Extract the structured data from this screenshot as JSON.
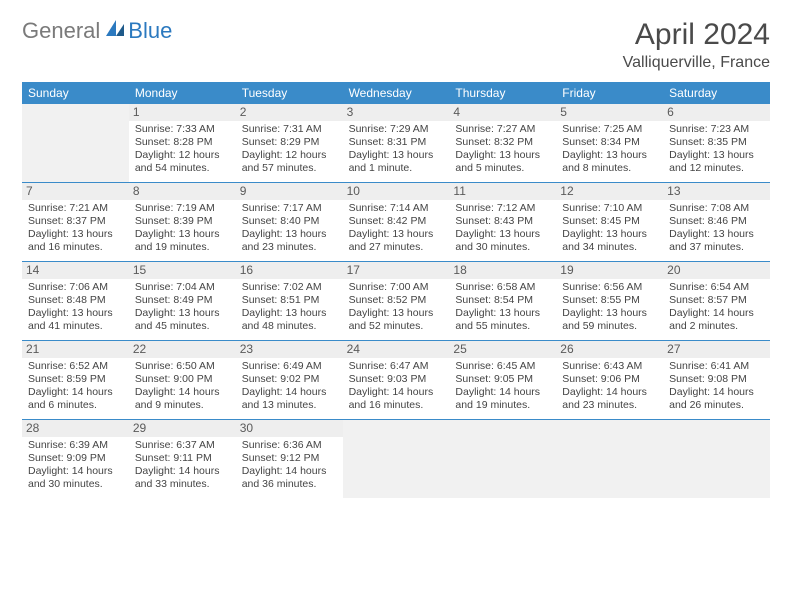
{
  "logo": {
    "general": "General",
    "blue": "Blue"
  },
  "title": {
    "month": "April 2024",
    "location": "Valliquerville, France"
  },
  "colors": {
    "header_bg": "#3a8bc9",
    "header_text": "#ffffff",
    "rule": "#3a8bc9",
    "daynum_bg": "#eeeeee",
    "empty_bg": "#f1f1f1",
    "text": "#444444"
  },
  "day_names": [
    "Sunday",
    "Monday",
    "Tuesday",
    "Wednesday",
    "Thursday",
    "Friday",
    "Saturday"
  ],
  "weeks": [
    [
      {
        "empty": true
      },
      {
        "n": "1",
        "sunrise": "7:33 AM",
        "sunset": "8:28 PM",
        "daylight": "12 hours and 54 minutes."
      },
      {
        "n": "2",
        "sunrise": "7:31 AM",
        "sunset": "8:29 PM",
        "daylight": "12 hours and 57 minutes."
      },
      {
        "n": "3",
        "sunrise": "7:29 AM",
        "sunset": "8:31 PM",
        "daylight": "13 hours and 1 minute."
      },
      {
        "n": "4",
        "sunrise": "7:27 AM",
        "sunset": "8:32 PM",
        "daylight": "13 hours and 5 minutes."
      },
      {
        "n": "5",
        "sunrise": "7:25 AM",
        "sunset": "8:34 PM",
        "daylight": "13 hours and 8 minutes."
      },
      {
        "n": "6",
        "sunrise": "7:23 AM",
        "sunset": "8:35 PM",
        "daylight": "13 hours and 12 minutes."
      }
    ],
    [
      {
        "n": "7",
        "sunrise": "7:21 AM",
        "sunset": "8:37 PM",
        "daylight": "13 hours and 16 minutes."
      },
      {
        "n": "8",
        "sunrise": "7:19 AM",
        "sunset": "8:39 PM",
        "daylight": "13 hours and 19 minutes."
      },
      {
        "n": "9",
        "sunrise": "7:17 AM",
        "sunset": "8:40 PM",
        "daylight": "13 hours and 23 minutes."
      },
      {
        "n": "10",
        "sunrise": "7:14 AM",
        "sunset": "8:42 PM",
        "daylight": "13 hours and 27 minutes."
      },
      {
        "n": "11",
        "sunrise": "7:12 AM",
        "sunset": "8:43 PM",
        "daylight": "13 hours and 30 minutes."
      },
      {
        "n": "12",
        "sunrise": "7:10 AM",
        "sunset": "8:45 PM",
        "daylight": "13 hours and 34 minutes."
      },
      {
        "n": "13",
        "sunrise": "7:08 AM",
        "sunset": "8:46 PM",
        "daylight": "13 hours and 37 minutes."
      }
    ],
    [
      {
        "n": "14",
        "sunrise": "7:06 AM",
        "sunset": "8:48 PM",
        "daylight": "13 hours and 41 minutes."
      },
      {
        "n": "15",
        "sunrise": "7:04 AM",
        "sunset": "8:49 PM",
        "daylight": "13 hours and 45 minutes."
      },
      {
        "n": "16",
        "sunrise": "7:02 AM",
        "sunset": "8:51 PM",
        "daylight": "13 hours and 48 minutes."
      },
      {
        "n": "17",
        "sunrise": "7:00 AM",
        "sunset": "8:52 PM",
        "daylight": "13 hours and 52 minutes."
      },
      {
        "n": "18",
        "sunrise": "6:58 AM",
        "sunset": "8:54 PM",
        "daylight": "13 hours and 55 minutes."
      },
      {
        "n": "19",
        "sunrise": "6:56 AM",
        "sunset": "8:55 PM",
        "daylight": "13 hours and 59 minutes."
      },
      {
        "n": "20",
        "sunrise": "6:54 AM",
        "sunset": "8:57 PM",
        "daylight": "14 hours and 2 minutes."
      }
    ],
    [
      {
        "n": "21",
        "sunrise": "6:52 AM",
        "sunset": "8:59 PM",
        "daylight": "14 hours and 6 minutes."
      },
      {
        "n": "22",
        "sunrise": "6:50 AM",
        "sunset": "9:00 PM",
        "daylight": "14 hours and 9 minutes."
      },
      {
        "n": "23",
        "sunrise": "6:49 AM",
        "sunset": "9:02 PM",
        "daylight": "14 hours and 13 minutes."
      },
      {
        "n": "24",
        "sunrise": "6:47 AM",
        "sunset": "9:03 PM",
        "daylight": "14 hours and 16 minutes."
      },
      {
        "n": "25",
        "sunrise": "6:45 AM",
        "sunset": "9:05 PM",
        "daylight": "14 hours and 19 minutes."
      },
      {
        "n": "26",
        "sunrise": "6:43 AM",
        "sunset": "9:06 PM",
        "daylight": "14 hours and 23 minutes."
      },
      {
        "n": "27",
        "sunrise": "6:41 AM",
        "sunset": "9:08 PM",
        "daylight": "14 hours and 26 minutes."
      }
    ],
    [
      {
        "n": "28",
        "sunrise": "6:39 AM",
        "sunset": "9:09 PM",
        "daylight": "14 hours and 30 minutes."
      },
      {
        "n": "29",
        "sunrise": "6:37 AM",
        "sunset": "9:11 PM",
        "daylight": "14 hours and 33 minutes."
      },
      {
        "n": "30",
        "sunrise": "6:36 AM",
        "sunset": "9:12 PM",
        "daylight": "14 hours and 36 minutes."
      },
      {
        "empty": true
      },
      {
        "empty": true
      },
      {
        "empty": true
      },
      {
        "empty": true
      }
    ]
  ],
  "labels": {
    "sunrise": "Sunrise:",
    "sunset": "Sunset:",
    "daylight": "Daylight:"
  }
}
